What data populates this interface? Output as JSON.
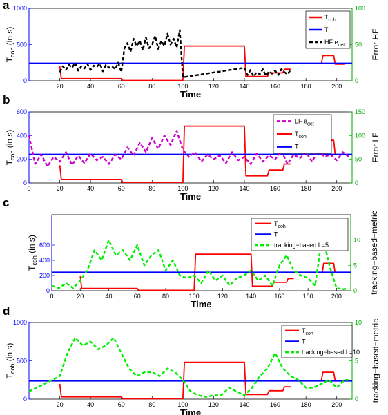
{
  "colors": {
    "tcoh": "#ff0000",
    "t": "#0000ff",
    "hf": "#000000",
    "lf": "#cc00cc",
    "track": "#00ee00",
    "right_axis": "#00aa00",
    "left_axis": "#0000ff"
  },
  "chart_data": [
    {
      "type": "line",
      "panel_label": "a",
      "xlabel": "Time",
      "ylabel_left": "T_coh (in s)",
      "ylabel_right": "Error HF",
      "xlim": [
        0,
        210
      ],
      "ylim_left": [
        0,
        1000
      ],
      "ylim_right": [
        0,
        100
      ],
      "xticks": [
        20,
        40,
        60,
        80,
        100,
        120,
        140,
        160,
        180,
        200
      ],
      "yticks_left": [
        0,
        500,
        1000
      ],
      "yticks_right": [
        0,
        50,
        100
      ],
      "legend_position": "top-right",
      "legend": [
        {
          "key": "tcoh",
          "main": "T",
          "sub": "coh"
        },
        {
          "key": "t",
          "main": "T",
          "sub": ""
        },
        {
          "key": "hf",
          "main": "HF e",
          "sub": "det"
        }
      ],
      "series": [
        {
          "name": "T_coh",
          "key": "tcoh",
          "axis": "left",
          "style": "solid",
          "x": [
            20,
            21,
            60,
            61,
            100,
            101,
            140,
            141,
            155,
            156,
            165,
            166,
            170,
            171,
            180,
            190,
            191,
            198,
            199,
            205
          ],
          "y": [
            200,
            30,
            30,
            5,
            5,
            480,
            480,
            60,
            60,
            110,
            110,
            160,
            160,
            null,
            null,
            230,
            350,
            350,
            230,
            230
          ]
        },
        {
          "name": "T",
          "key": "t",
          "axis": "left",
          "style": "solid",
          "x": [
            0,
            210
          ],
          "y": [
            240,
            240
          ]
        },
        {
          "name": "HF e_det",
          "key": "hf",
          "axis": "right",
          "style": "dashed",
          "x": [
            20,
            22,
            24,
            26,
            28,
            30,
            32,
            34,
            36,
            38,
            40,
            42,
            44,
            46,
            48,
            50,
            52,
            54,
            56,
            58,
            60,
            62,
            64,
            66,
            68,
            70,
            72,
            74,
            76,
            78,
            80,
            82,
            84,
            86,
            88,
            90,
            92,
            94,
            96,
            98,
            100,
            140,
            142,
            144,
            146,
            148,
            150,
            152,
            154,
            156,
            158,
            160,
            162,
            164,
            166,
            168,
            170
          ],
          "y": [
            12,
            20,
            15,
            22,
            18,
            25,
            14,
            20,
            17,
            23,
            15,
            21,
            19,
            24,
            13,
            22,
            18,
            20,
            16,
            25,
            12,
            45,
            52,
            40,
            58,
            48,
            55,
            42,
            60,
            45,
            50,
            62,
            44,
            55,
            48,
            65,
            50,
            58,
            46,
            70,
            5,
            18,
            8,
            15,
            6,
            12,
            9,
            16,
            7,
            13,
            10,
            14,
            8,
            16,
            12,
            9,
            15
          ]
        }
      ]
    },
    {
      "type": "line",
      "panel_label": "b",
      "xlabel": "Time",
      "ylabel_left": "T_coh (in s)",
      "ylabel_right": "Error LF",
      "xlim": [
        0,
        210
      ],
      "ylim_left": [
        0,
        600
      ],
      "ylim_right": [
        0,
        150
      ],
      "xticks": [
        0,
        20,
        40,
        60,
        80,
        100,
        120,
        140,
        160,
        180,
        200
      ],
      "yticks_left": [
        0,
        200,
        400,
        600
      ],
      "yticks_right": [
        0,
        50,
        100,
        150
      ],
      "legend_position": "top-right",
      "legend": [
        {
          "key": "lf",
          "main": "LF e",
          "sub": "det"
        },
        {
          "key": "tcoh",
          "main": "T",
          "sub": "coh"
        },
        {
          "key": "t",
          "main": "T",
          "sub": ""
        }
      ],
      "series": [
        {
          "name": "T_coh",
          "key": "tcoh",
          "axis": "left",
          "style": "solid",
          "x": [
            20,
            21,
            60,
            61,
            100,
            101,
            140,
            141,
            155,
            156,
            165,
            166,
            170,
            171,
            180,
            190,
            191,
            198,
            199,
            205
          ],
          "y": [
            150,
            30,
            30,
            5,
            5,
            480,
            480,
            60,
            60,
            110,
            110,
            160,
            160,
            null,
            null,
            240,
            360,
            360,
            240,
            240
          ]
        },
        {
          "name": "T",
          "key": "t",
          "axis": "left",
          "style": "solid",
          "x": [
            0,
            210
          ],
          "y": [
            240,
            240
          ]
        },
        {
          "name": "LF e_det",
          "key": "lf",
          "axis": "right",
          "style": "dashed",
          "x": [
            0,
            4,
            8,
            12,
            16,
            20,
            24,
            28,
            32,
            36,
            40,
            44,
            48,
            52,
            56,
            60,
            64,
            68,
            72,
            76,
            80,
            84,
            88,
            92,
            96,
            100,
            104,
            108,
            112,
            116,
            120,
            124,
            128,
            132,
            136,
            140,
            144,
            148,
            152,
            156,
            160,
            164,
            168,
            172,
            176,
            180,
            184,
            188,
            192,
            196,
            200,
            204,
            208
          ],
          "y": [
            100,
            40,
            60,
            35,
            55,
            45,
            65,
            38,
            58,
            42,
            62,
            48,
            55,
            40,
            60,
            50,
            75,
            58,
            85,
            65,
            95,
            72,
            100,
            80,
            110,
            70,
            55,
            65,
            45,
            60,
            50,
            58,
            42,
            65,
            48,
            55,
            40,
            62,
            45,
            58,
            50,
            68,
            40,
            60,
            52,
            65,
            45,
            70,
            55,
            60,
            48,
            65,
            55
          ]
        }
      ]
    },
    {
      "type": "line",
      "panel_label": "c",
      "xlabel": "Time",
      "ylabel_left": "T_coh (in s)",
      "ylabel_right": "tracking−based−metric",
      "xlim": [
        0,
        210
      ],
      "ylim_left": [
        0,
        1000
      ],
      "ylim_right": [
        0,
        15
      ],
      "xticks": [
        0,
        20,
        40,
        60,
        80,
        100,
        120,
        140,
        160,
        180,
        200
      ],
      "yticks_left": [
        0,
        200,
        400,
        600
      ],
      "yticks_right": [
        0,
        5,
        10
      ],
      "legend_position": "top-right",
      "legend": [
        {
          "key": "tcoh",
          "main": "T",
          "sub": "coh"
        },
        {
          "key": "t",
          "main": "T",
          "sub": ""
        },
        {
          "key": "track",
          "main": "tracking−based L=5",
          "sub": ""
        }
      ],
      "series": [
        {
          "name": "T_coh",
          "key": "tcoh",
          "axis": "left",
          "style": "solid",
          "x": [
            20,
            21,
            60,
            61,
            100,
            101,
            140,
            141,
            155,
            156,
            165,
            166,
            170,
            171,
            180,
            190,
            191,
            198,
            199,
            205
          ],
          "y": [
            200,
            30,
            30,
            5,
            5,
            480,
            480,
            60,
            60,
            110,
            110,
            160,
            160,
            null,
            null,
            240,
            360,
            360,
            240,
            240
          ]
        },
        {
          "name": "T",
          "key": "t",
          "axis": "left",
          "style": "solid",
          "x": [
            0,
            210
          ],
          "y": [
            240,
            240
          ]
        },
        {
          "name": "tracking-based L=5",
          "key": "track",
          "axis": "right",
          "style": "dashed",
          "x": [
            0,
            5,
            10,
            15,
            20,
            25,
            30,
            35,
            40,
            45,
            50,
            55,
            60,
            65,
            70,
            75,
            80,
            85,
            90,
            95,
            100,
            105,
            110,
            115,
            120,
            125,
            130,
            135,
            140,
            145,
            150,
            155,
            160,
            165,
            170,
            175,
            180,
            185,
            190,
            195,
            200,
            205,
            208
          ],
          "y": [
            1,
            0.5,
            1.5,
            0.5,
            2,
            4,
            8,
            6,
            10,
            7,
            8,
            6,
            9,
            5,
            7,
            8,
            4,
            6,
            3,
            2.5,
            3,
            1.5,
            4,
            2,
            3,
            1,
            2.5,
            3,
            4,
            2,
            3,
            1,
            5,
            7,
            4,
            3,
            2.5,
            1,
            11,
            5,
            0.5,
            0.3,
            0.5
          ]
        }
      ]
    },
    {
      "type": "line",
      "panel_label": "d",
      "xlabel": "Time",
      "ylabel_left": "T_coh (in s)",
      "ylabel_right": "tracking−based−metric",
      "xlim": [
        0,
        210
      ],
      "ylim_left": [
        0,
        1000
      ],
      "ylim_right": [
        0,
        10
      ],
      "xticks": [
        20,
        40,
        60,
        80,
        100,
        120,
        140,
        160,
        180,
        200
      ],
      "yticks_left": [
        0,
        500,
        1000
      ],
      "yticks_right": [
        0,
        5,
        10
      ],
      "legend_position": "top-right",
      "legend": [
        {
          "key": "tcoh",
          "main": "T",
          "sub": "coh"
        },
        {
          "key": "t",
          "main": "T",
          "sub": ""
        },
        {
          "key": "track",
          "main": "tracking−based L=10",
          "sub": ""
        }
      ],
      "series": [
        {
          "name": "T_coh",
          "key": "tcoh",
          "axis": "left",
          "style": "solid",
          "x": [
            20,
            21,
            60,
            61,
            100,
            101,
            140,
            141,
            155,
            156,
            165,
            166,
            170,
            171,
            180,
            190,
            191,
            198,
            199,
            205
          ],
          "y": [
            200,
            30,
            30,
            5,
            5,
            480,
            480,
            60,
            60,
            110,
            110,
            160,
            160,
            null,
            null,
            240,
            350,
            350,
            240,
            240
          ]
        },
        {
          "name": "T",
          "key": "t",
          "axis": "left",
          "style": "solid",
          "x": [
            0,
            210
          ],
          "y": [
            240,
            240
          ]
        },
        {
          "name": "tracking-based L=10",
          "key": "track",
          "axis": "right",
          "style": "dashed",
          "x": [
            0,
            5,
            10,
            15,
            20,
            25,
            30,
            35,
            40,
            45,
            50,
            55,
            60,
            65,
            70,
            75,
            80,
            85,
            90,
            95,
            100,
            105,
            110,
            115,
            120,
            125,
            130,
            135,
            140,
            145,
            150,
            155,
            160,
            165,
            170,
            175,
            180,
            185,
            190,
            195,
            200,
            205,
            208
          ],
          "y": [
            1,
            1.5,
            2,
            2.5,
            3,
            6,
            8,
            7,
            7.5,
            6.5,
            7,
            8,
            6,
            4,
            3,
            3.5,
            3.5,
            3,
            4,
            3.5,
            2.5,
            1,
            0.5,
            0.3,
            0.5,
            0.5,
            1.5,
            1,
            0.5,
            1.5,
            3,
            4,
            6,
            4,
            3,
            2.5,
            1.5,
            1.5,
            2,
            2.5,
            1.5,
            2.5,
            2.5
          ]
        }
      ]
    }
  ]
}
